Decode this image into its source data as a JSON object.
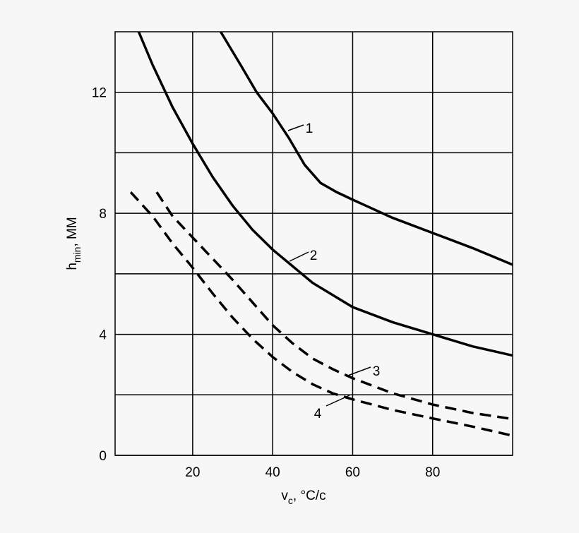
{
  "chart_data": {
    "type": "line",
    "xlabel": {
      "main": "v",
      "sub": "c",
      "rest": ", °C/c"
    },
    "ylabel": {
      "main": "h",
      "sub": "min",
      "rest": ", MM"
    },
    "xlim": [
      0.6,
      100
    ],
    "ylim": [
      0,
      14
    ],
    "xticks": [
      20,
      40,
      60,
      80
    ],
    "yticks": [
      0,
      4,
      8,
      12
    ],
    "yminor": [
      2,
      6,
      10
    ],
    "grid": true,
    "color": "#000000",
    "series": [
      {
        "name": "1",
        "dash": false,
        "x": [
          27,
          32,
          36,
          40,
          44,
          48,
          52,
          56,
          60,
          70,
          80,
          90,
          100
        ],
        "values": [
          14,
          12.9,
          12,
          11.3,
          10.5,
          9.6,
          9,
          8.7,
          8.45,
          7.85,
          7.35,
          6.85,
          6.3
        ]
      },
      {
        "name": "2",
        "dash": false,
        "x": [
          6.5,
          10,
          15,
          20,
          25,
          30,
          35,
          40,
          45,
          50,
          55,
          60,
          70,
          80,
          90,
          100
        ],
        "values": [
          14,
          12.9,
          11.5,
          10.3,
          9.2,
          8.25,
          7.45,
          6.8,
          6.25,
          5.7,
          5.3,
          4.9,
          4.4,
          4,
          3.6,
          3.3
        ]
      },
      {
        "name": "3",
        "dash": true,
        "x": [
          11,
          15,
          20,
          25,
          30,
          35,
          40,
          45,
          50,
          55,
          60,
          70,
          80,
          90,
          100
        ],
        "values": [
          8.7,
          7.9,
          7.2,
          6.5,
          5.8,
          5.05,
          4.3,
          3.7,
          3.2,
          2.85,
          2.55,
          2.05,
          1.68,
          1.4,
          1.2
        ]
      },
      {
        "name": "4",
        "dash": true,
        "x": [
          4.5,
          10,
          15,
          20,
          25,
          30,
          35,
          40,
          45,
          50,
          55,
          60,
          70,
          80,
          90,
          100
        ],
        "values": [
          8.7,
          7.9,
          7,
          6.2,
          5.35,
          4.55,
          3.85,
          3.25,
          2.75,
          2.35,
          2.05,
          1.85,
          1.5,
          1.22,
          0.95,
          0.65
        ]
      }
    ]
  }
}
